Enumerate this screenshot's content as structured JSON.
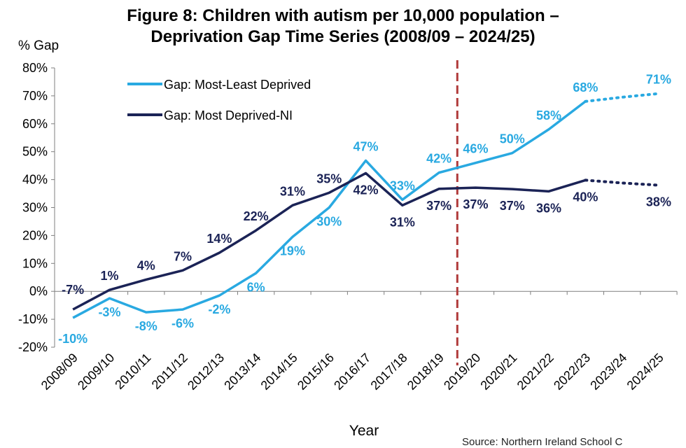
{
  "chart_data": {
    "type": "line",
    "title_line1": "Figure 8: Children with autism per 10,000 population –",
    "title_line2": "Deprivation Gap Time Series (2008/09 – 2024/25)",
    "ylabel": "% Gap",
    "xlabel": "Year",
    "source": "Source: Northern Ireland School C",
    "ylim": [
      -20,
      80
    ],
    "y_ticks": [
      "-20%",
      "-10%",
      "0%",
      "10%",
      "20%",
      "30%",
      "40%",
      "50%",
      "60%",
      "70%",
      "80%"
    ],
    "y_tick_values": [
      -20,
      -10,
      0,
      10,
      20,
      30,
      40,
      50,
      60,
      70,
      80
    ],
    "categories": [
      "2008/09",
      "2009/10",
      "2010/11",
      "2011/12",
      "2012/13",
      "2013/14",
      "2014/15",
      "2015/16",
      "2016/17",
      "2017/18",
      "2018/19",
      "2019/20",
      "2020/21",
      "2021/22",
      "2022/23",
      "2023/24",
      "2024/25"
    ],
    "projection_divider_after": "2018/19",
    "series": [
      {
        "name": "Gap: Most-Least Deprived",
        "color": "#29a9e1",
        "values": [
          -9.5,
          -2.5,
          -7.5,
          -6.5,
          -1.5,
          6.5,
          19.5,
          30,
          46.8,
          32.8,
          42.5,
          46,
          49.5,
          58,
          68,
          69.5,
          70.8
        ],
        "labels": [
          "-10%",
          "-3%",
          "-8%",
          "-6%",
          "-2%",
          "6%",
          "19%",
          "30%",
          "47%",
          "33%",
          "42%",
          "46%",
          "50%",
          "58%",
          "68%",
          "",
          "71%"
        ],
        "projected_from_index": 14
      },
      {
        "name": "Gap: Most Deprived-NI",
        "color": "#1b2356",
        "values": [
          -6.5,
          0.5,
          4.2,
          7.5,
          13.8,
          21.8,
          30.8,
          35.3,
          42.3,
          30.8,
          36.7,
          37.1,
          36.6,
          35.8,
          39.8,
          38.8,
          38
        ],
        "labels": [
          "-7%",
          "1%",
          "4%",
          "7%",
          "14%",
          "22%",
          "31%",
          "35%",
          "42%",
          "31%",
          "37%",
          "37%",
          "37%",
          "36%",
          "40%",
          "",
          "38%"
        ],
        "projected_from_index": 14
      }
    ]
  },
  "colors": {
    "divider": "#b03a3a",
    "axis": "#7f7f7f"
  }
}
